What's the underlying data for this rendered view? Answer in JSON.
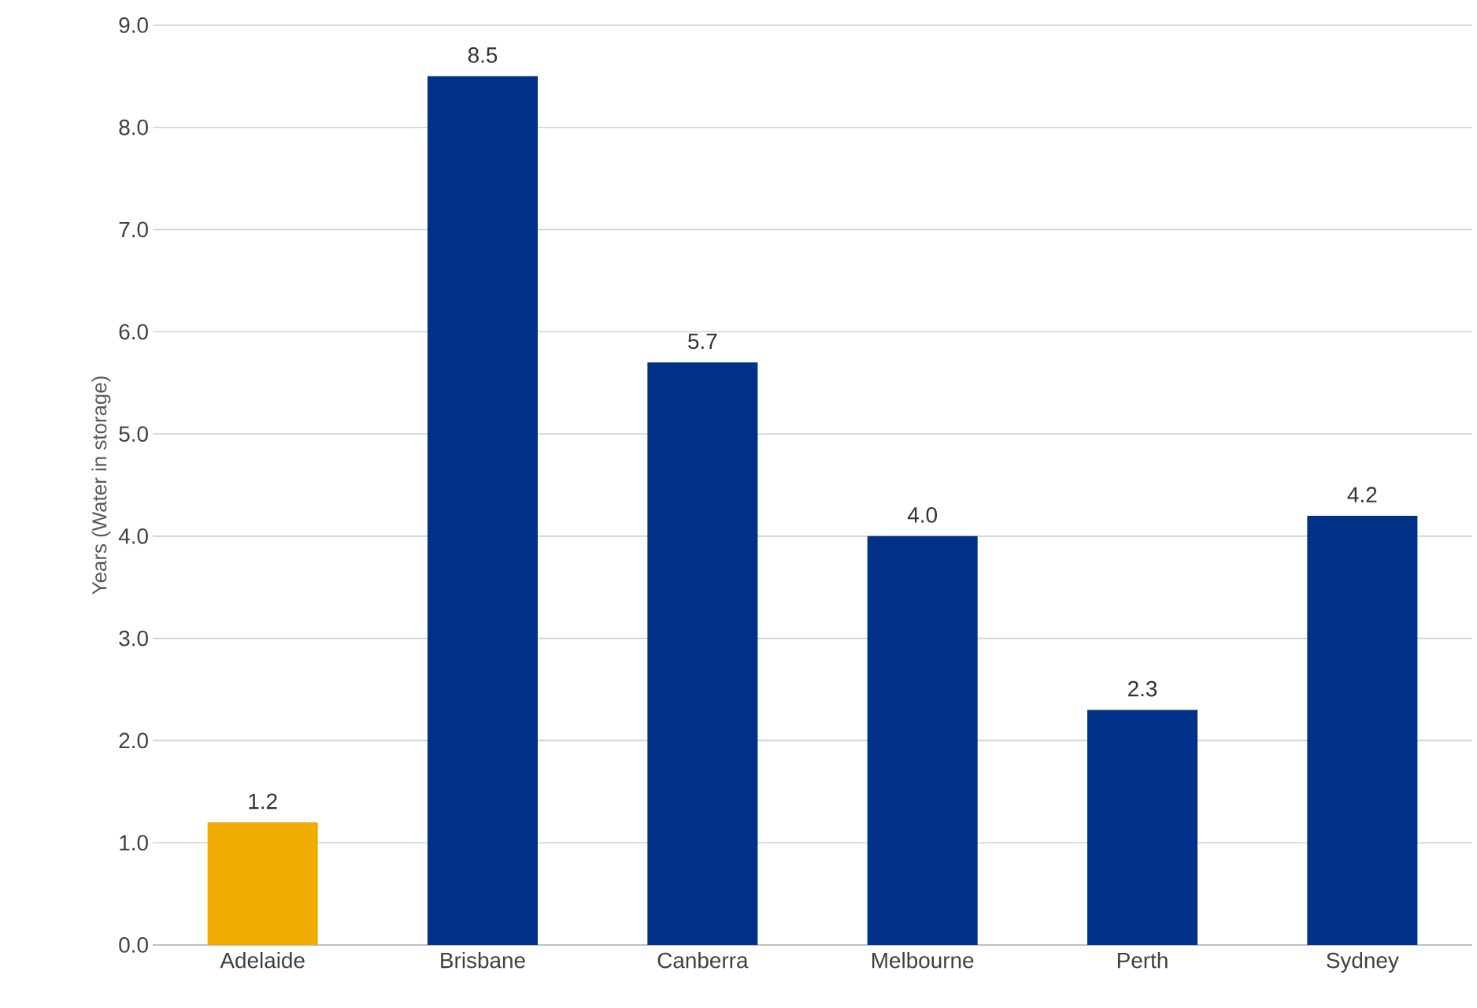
{
  "chart_data": {
    "type": "bar",
    "ylabel": "Years (Water in storage)",
    "categories": [
      "Adelaide",
      "Brisbane",
      "Canberra",
      "Melbourne",
      "Perth",
      "Sydney"
    ],
    "values": [
      1.2,
      8.5,
      5.7,
      4.0,
      2.3,
      4.2
    ],
    "value_labels": [
      "1.2",
      "8.5",
      "5.7",
      "4.0",
      "2.3",
      "4.2"
    ],
    "colors": [
      "#f0ab00",
      "#003087",
      "#003087",
      "#003087",
      "#003087",
      "#003087"
    ],
    "ylim": [
      0,
      9
    ],
    "yticks": [
      {
        "value": 0,
        "label": "0.0"
      },
      {
        "value": 1,
        "label": "1.0"
      },
      {
        "value": 2,
        "label": "2.0"
      },
      {
        "value": 3,
        "label": "3.0"
      },
      {
        "value": 4,
        "label": "4.0"
      },
      {
        "value": 5,
        "label": "5.0"
      },
      {
        "value": 6,
        "label": "6.0"
      },
      {
        "value": 7,
        "label": "7.0"
      },
      {
        "value": 8,
        "label": "8.0"
      },
      {
        "value": 9,
        "label": "9.0"
      }
    ],
    "grid": "y"
  }
}
